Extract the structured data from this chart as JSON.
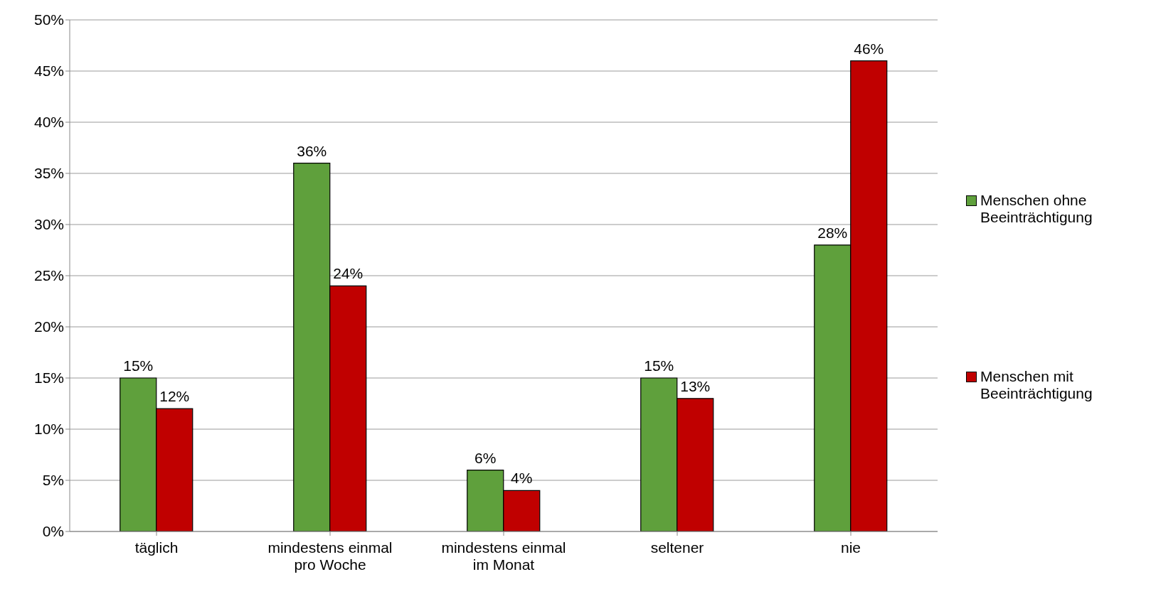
{
  "chart_data": {
    "type": "bar",
    "categories": [
      "täglich",
      "mindestens einmal pro Woche",
      "mindestens einmal im Monat",
      "seltener",
      "nie"
    ],
    "series": [
      {
        "name": "Menschen ohne Beeinträchtigung",
        "color": "#5fa03c",
        "values": [
          15,
          36,
          6,
          15,
          28
        ],
        "value_labels": [
          "15%",
          "36%",
          "6%",
          "15%",
          "28%"
        ]
      },
      {
        "name": "Menschen mit Beeinträchtigung",
        "color": "#c00000",
        "values": [
          12,
          24,
          4,
          13,
          46
        ],
        "value_labels": [
          "12%",
          "24%",
          "4%",
          "13%",
          "46%"
        ]
      }
    ],
    "ylim": [
      0,
      50
    ],
    "yticks": [
      {
        "value": 0,
        "label": "0%"
      },
      {
        "value": 5,
        "label": "5%"
      },
      {
        "value": 10,
        "label": "10%"
      },
      {
        "value": 15,
        "label": "15%"
      },
      {
        "value": 20,
        "label": "20%"
      },
      {
        "value": 25,
        "label": "25%"
      },
      {
        "value": 30,
        "label": "30%"
      },
      {
        "value": 35,
        "label": "35%"
      },
      {
        "value": 40,
        "label": "40%"
      },
      {
        "value": 45,
        "label": "45%"
      },
      {
        "value": 50,
        "label": "50%"
      }
    ],
    "grid": "y",
    "legend": "right"
  }
}
